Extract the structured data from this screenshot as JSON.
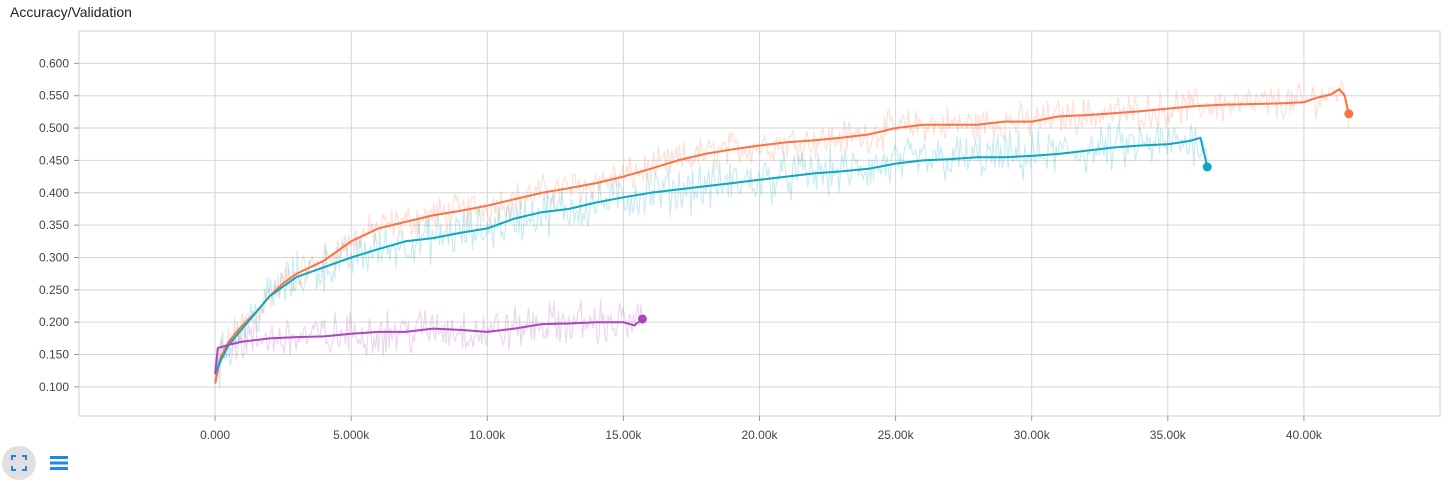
{
  "chart_data": {
    "type": "line",
    "title": "Accuracy/Validation",
    "xlabel": "",
    "ylabel": "",
    "xlim": [
      -5000,
      45000
    ],
    "ylim": [
      0.055,
      0.65
    ],
    "x_ticks": [
      0,
      5000,
      10000,
      15000,
      20000,
      25000,
      30000,
      35000,
      40000
    ],
    "x_tick_labels": [
      "0.000",
      "5.000k",
      "10.00k",
      "15.00k",
      "20.00k",
      "25.00k",
      "30.00k",
      "35.00k",
      "40.00k"
    ],
    "y_ticks": [
      0.1,
      0.15,
      0.2,
      0.25,
      0.3,
      0.35,
      0.4,
      0.45,
      0.5,
      0.55,
      0.6
    ],
    "y_tick_labels": [
      "0.100",
      "0.150",
      "0.200",
      "0.250",
      "0.300",
      "0.350",
      "0.400",
      "0.450",
      "0.500",
      "0.550",
      "0.600"
    ],
    "grid": true,
    "series": [
      {
        "color": "#ff7043",
        "x": [
          0,
          200,
          500,
          1000,
          1500,
          2000,
          2500,
          3000,
          4000,
          5000,
          6000,
          7000,
          8000,
          9000,
          10000,
          11000,
          12000,
          13000,
          14000,
          15000,
          16000,
          17000,
          18000,
          19000,
          20000,
          21000,
          22000,
          23000,
          24000,
          25000,
          26000,
          27000,
          28000,
          29000,
          30000,
          31000,
          32000,
          33000,
          34000,
          35000,
          36000,
          37000,
          38000,
          39000,
          40000,
          40500,
          41000,
          41300,
          41500,
          41650
        ],
        "y": [
          0.105,
          0.145,
          0.17,
          0.195,
          0.215,
          0.24,
          0.26,
          0.275,
          0.295,
          0.325,
          0.345,
          0.355,
          0.365,
          0.372,
          0.38,
          0.39,
          0.4,
          0.407,
          0.415,
          0.425,
          0.437,
          0.45,
          0.46,
          0.467,
          0.473,
          0.478,
          0.481,
          0.485,
          0.49,
          0.5,
          0.505,
          0.505,
          0.505,
          0.51,
          0.51,
          0.518,
          0.52,
          0.523,
          0.526,
          0.53,
          0.534,
          0.536,
          0.537,
          0.538,
          0.54,
          0.547,
          0.552,
          0.56,
          0.55,
          0.522
        ]
      },
      {
        "color": "#0fa7bd",
        "x": [
          0,
          200,
          500,
          1000,
          1500,
          2000,
          2500,
          3000,
          4000,
          5000,
          6000,
          7000,
          8000,
          9000,
          10000,
          11000,
          12000,
          13000,
          14000,
          15000,
          16000,
          17000,
          18000,
          19000,
          20000,
          21000,
          22000,
          23000,
          24000,
          25000,
          26000,
          27000,
          28000,
          29000,
          30000,
          31000,
          32000,
          33000,
          34000,
          35000,
          35800,
          36200,
          36450
        ],
        "y": [
          0.12,
          0.14,
          0.165,
          0.19,
          0.215,
          0.24,
          0.255,
          0.27,
          0.285,
          0.3,
          0.313,
          0.325,
          0.33,
          0.338,
          0.345,
          0.36,
          0.37,
          0.375,
          0.385,
          0.393,
          0.4,
          0.405,
          0.41,
          0.415,
          0.42,
          0.425,
          0.43,
          0.433,
          0.437,
          0.445,
          0.45,
          0.452,
          0.455,
          0.455,
          0.457,
          0.46,
          0.465,
          0.47,
          0.473,
          0.475,
          0.48,
          0.485,
          0.44
        ]
      },
      {
        "color": "#ab47bc",
        "x": [
          0,
          100,
          500,
          1000,
          2000,
          3000,
          4000,
          5000,
          6000,
          7000,
          8000,
          9000,
          10000,
          11000,
          12000,
          13000,
          14000,
          15000,
          15400,
          15700
        ],
        "y": [
          0.12,
          0.16,
          0.165,
          0.17,
          0.175,
          0.177,
          0.178,
          0.182,
          0.185,
          0.185,
          0.19,
          0.188,
          0.185,
          0.19,
          0.197,
          0.198,
          0.2,
          0.2,
          0.195,
          0.205
        ]
      }
    ]
  }
}
